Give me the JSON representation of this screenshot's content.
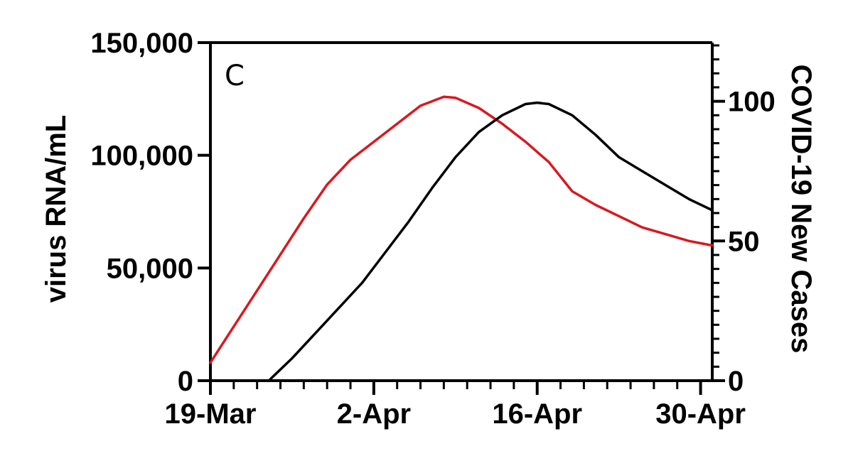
{
  "chart_data": {
    "type": "line",
    "panel_label": "C",
    "x": {
      "unit": "date",
      "range": [
        "2020-03-19",
        "2020-05-01"
      ],
      "tick_labels": [
        "19-Mar",
        "2-Apr",
        "16-Apr",
        "30-Apr"
      ],
      "tick_dates": [
        "2020-03-19",
        "2020-04-02",
        "2020-04-16",
        "2020-04-30"
      ]
    },
    "y_left": {
      "label": "virus RNA/mL",
      "range": [
        0,
        150000
      ],
      "ticks": [
        0,
        50000,
        100000,
        150000
      ],
      "tick_labels": [
        "0",
        "50,000",
        "100,000",
        "150,000"
      ]
    },
    "y_right": {
      "label": "COVID-19 New Cases",
      "range": [
        0,
        121
      ],
      "ticks": [
        0,
        50,
        100
      ],
      "tick_labels": [
        "0",
        "50",
        "100"
      ]
    },
    "grid": false,
    "legend": "none",
    "series": [
      {
        "axis": "left",
        "color": "#d9181e",
        "points": [
          [
            "2020-03-19",
            8000
          ],
          [
            "2020-03-21",
            24000
          ],
          [
            "2020-03-23",
            40000
          ],
          [
            "2020-03-25",
            56000
          ],
          [
            "2020-03-27",
            72000
          ],
          [
            "2020-03-29",
            87000
          ],
          [
            "2020-03-31",
            98000
          ],
          [
            "2020-04-02",
            106000
          ],
          [
            "2020-04-04",
            114000
          ],
          [
            "2020-04-06",
            122000
          ],
          [
            "2020-04-08",
            126000
          ],
          [
            "2020-04-09",
            125500
          ],
          [
            "2020-04-11",
            121000
          ],
          [
            "2020-04-13",
            114000
          ],
          [
            "2020-04-15",
            106000
          ],
          [
            "2020-04-17",
            97000
          ],
          [
            "2020-04-19",
            84000
          ],
          [
            "2020-04-21",
            78000
          ],
          [
            "2020-04-23",
            73000
          ],
          [
            "2020-04-25",
            68000
          ],
          [
            "2020-04-27",
            65000
          ],
          [
            "2020-04-29",
            62000
          ],
          [
            "2020-05-01",
            60000
          ]
        ]
      },
      {
        "axis": "right",
        "color": "#000000",
        "points": [
          [
            "2020-03-24",
            0
          ],
          [
            "2020-03-26",
            8
          ],
          [
            "2020-03-28",
            17
          ],
          [
            "2020-03-30",
            26
          ],
          [
            "2020-04-01",
            35
          ],
          [
            "2020-04-03",
            46
          ],
          [
            "2020-04-05",
            57
          ],
          [
            "2020-04-07",
            69
          ],
          [
            "2020-04-09",
            80
          ],
          [
            "2020-04-11",
            89
          ],
          [
            "2020-04-13",
            95
          ],
          [
            "2020-04-15",
            99
          ],
          [
            "2020-04-16",
            99.5
          ],
          [
            "2020-04-17",
            99
          ],
          [
            "2020-04-19",
            95
          ],
          [
            "2020-04-21",
            88
          ],
          [
            "2020-04-23",
            80
          ],
          [
            "2020-04-25",
            75
          ],
          [
            "2020-04-27",
            70
          ],
          [
            "2020-04-29",
            65
          ],
          [
            "2020-05-01",
            61
          ]
        ]
      }
    ]
  }
}
